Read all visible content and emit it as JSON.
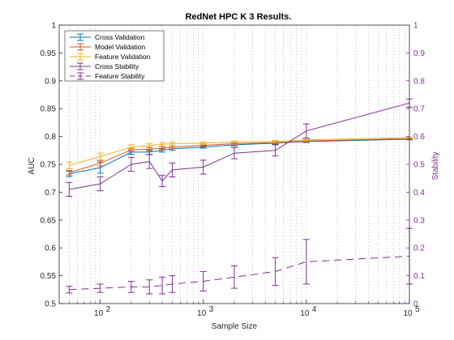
{
  "chart_data": {
    "type": "line",
    "title": "RedNet HPC K 3 Results.",
    "xlabel": "Sample Size",
    "ylabel": "AUC",
    "y2label": "Stability",
    "x_scale": "log",
    "xlim": [
      40,
      100000
    ],
    "ylim": [
      0.5,
      1
    ],
    "y2lim": [
      0,
      1
    ],
    "x_tick_labels": [
      "10^2",
      "10^3",
      "10^4",
      "10^5"
    ],
    "y_ticks": [
      "0.5",
      "0.55",
      "0.6",
      "0.65",
      "0.7",
      "0.75",
      "0.8",
      "0.85",
      "0.9",
      "0.95",
      "1"
    ],
    "y2_ticks": [
      "0",
      "0.1",
      "0.2",
      "0.3",
      "0.4",
      "0.5",
      "0.6",
      "0.7",
      "0.8",
      "0.9",
      "1"
    ],
    "grid": "x minor dotted",
    "legend_position": "top-left",
    "x": [
      50,
      100,
      200,
      300,
      400,
      500,
      1000,
      2000,
      5000,
      10000,
      100000
    ],
    "series": [
      {
        "name": "Cross Validation",
        "axis": "left",
        "color": "#0072bd",
        "style": "solid",
        "values": [
          0.733,
          0.744,
          0.772,
          0.772,
          0.775,
          0.778,
          0.781,
          0.785,
          0.788,
          0.791,
          0.795
        ],
        "errors": [
          0.005,
          0.01,
          0.004,
          0.004,
          0.003,
          0.003,
          0.002,
          0.002,
          0.002,
          0.002,
          0.001
        ]
      },
      {
        "name": "Model Validation",
        "axis": "left",
        "color": "#d95319",
        "style": "solid",
        "values": [
          0.735,
          0.752,
          0.776,
          0.777,
          0.779,
          0.781,
          0.784,
          0.787,
          0.789,
          0.792,
          0.796
        ],
        "errors": [
          0.004,
          0.005,
          0.003,
          0.003,
          0.003,
          0.003,
          0.002,
          0.002,
          0.002,
          0.002,
          0.001
        ]
      },
      {
        "name": "Feature Validation",
        "axis": "left",
        "color": "#edb120",
        "style": "solid",
        "values": [
          0.748,
          0.764,
          0.781,
          0.784,
          0.786,
          0.787,
          0.788,
          0.79,
          0.791,
          0.794,
          0.798
        ],
        "errors": [
          0.006,
          0.006,
          0.004,
          0.003,
          0.003,
          0.003,
          0.002,
          0.002,
          0.002,
          0.002,
          0.001
        ]
      },
      {
        "name": "Cross Stability",
        "axis": "right",
        "color": "#7e2f8e",
        "style": "solid",
        "values": [
          0.41,
          0.43,
          0.5,
          0.51,
          0.44,
          0.48,
          0.49,
          0.54,
          0.55,
          0.62,
          0.72
        ],
        "errors": [
          0.025,
          0.025,
          0.025,
          0.025,
          0.02,
          0.025,
          0.025,
          0.02,
          0.02,
          0.025,
          0.015
        ]
      },
      {
        "name": "Feature Stability",
        "axis": "right",
        "color": "#7e2f8e",
        "style": "dashed",
        "values": [
          0.05,
          0.055,
          0.06,
          0.06,
          0.065,
          0.07,
          0.08,
          0.095,
          0.115,
          0.15,
          0.17
        ],
        "errors": [
          0.012,
          0.015,
          0.02,
          0.025,
          0.03,
          0.03,
          0.035,
          0.04,
          0.05,
          0.08,
          0.1
        ]
      }
    ]
  }
}
